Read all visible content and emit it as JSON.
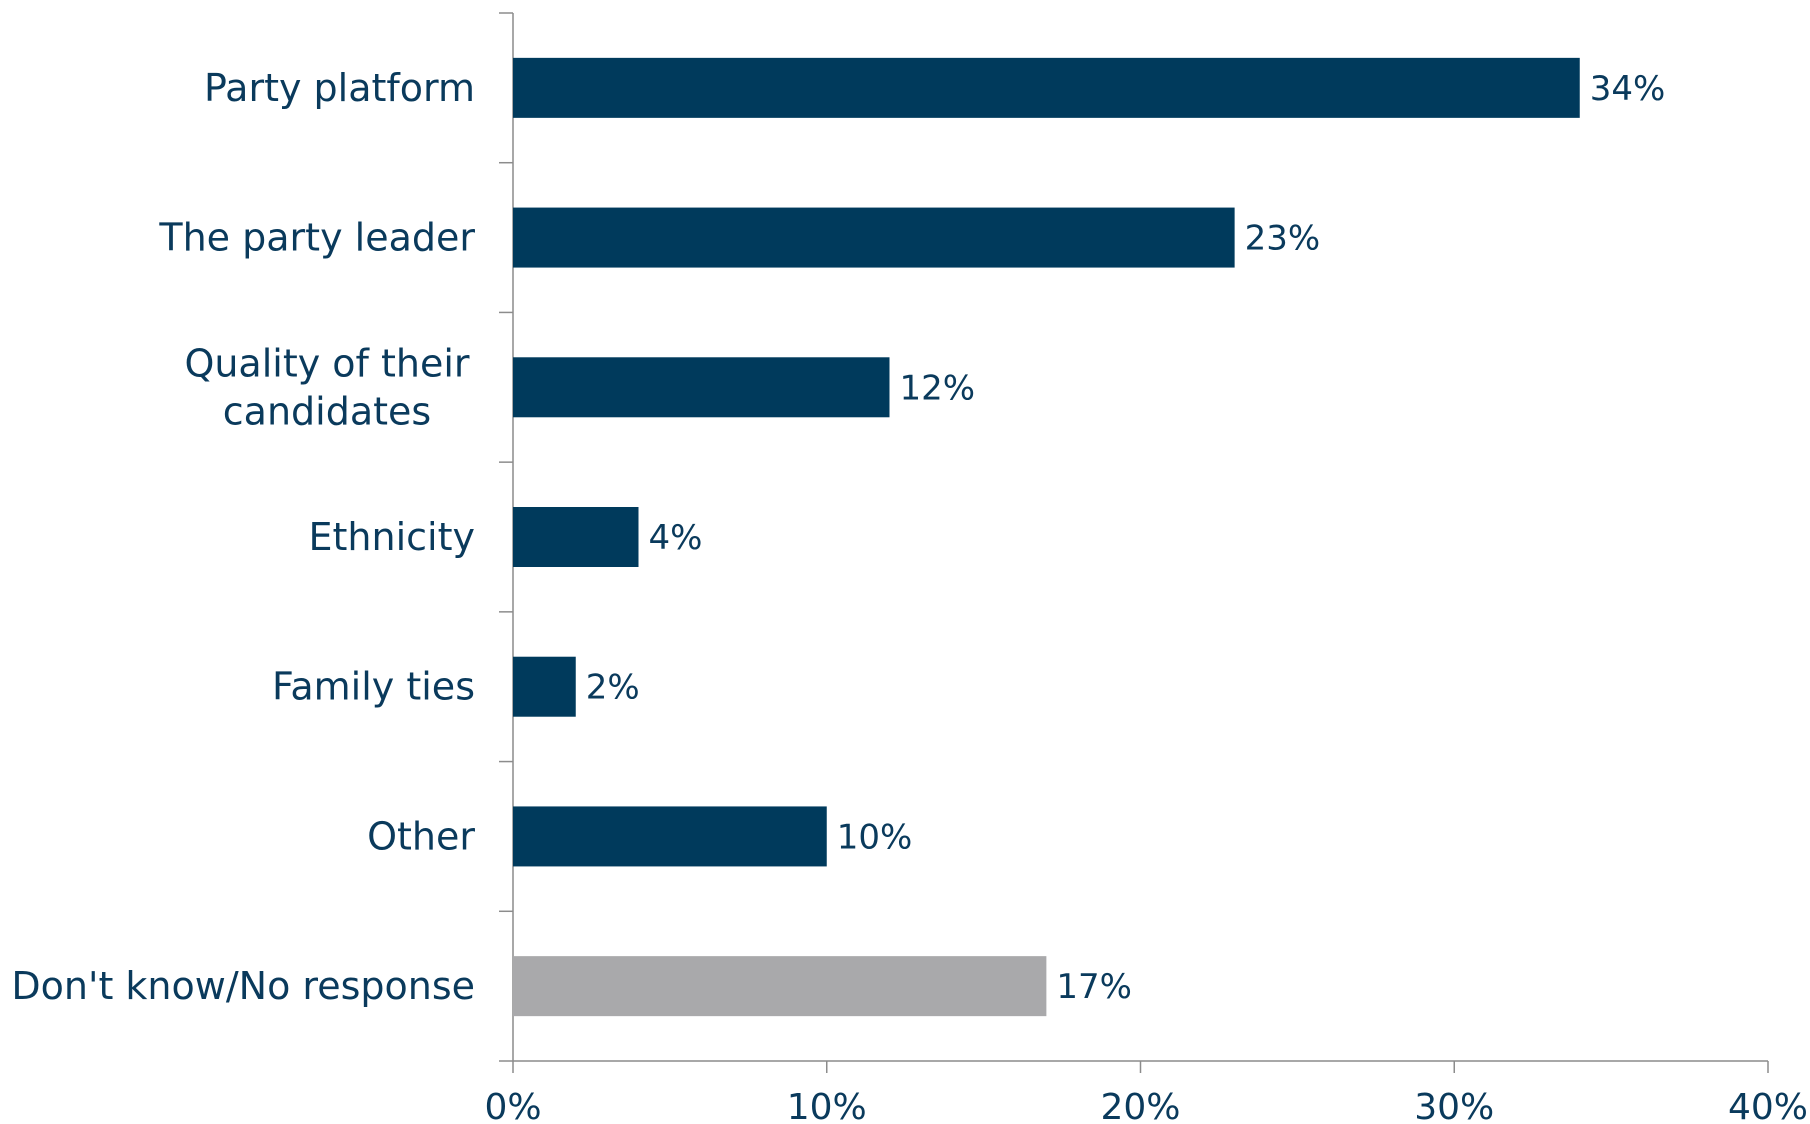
{
  "chart_data": {
    "type": "bar",
    "orientation": "horizontal",
    "categories": [
      [
        "Party platform"
      ],
      [
        "The party leader"
      ],
      [
        "Quality of their",
        "candidates"
      ],
      [
        "Ethnicity"
      ],
      [
        "Family ties"
      ],
      [
        "Other"
      ],
      [
        "Don't know/No response"
      ]
    ],
    "values": [
      34,
      23,
      12,
      4,
      2,
      10,
      17
    ],
    "value_labels": [
      "34%",
      "23%",
      "12%",
      "4%",
      "2%",
      "10%",
      "17%"
    ],
    "bar_colors": [
      "#003a5c",
      "#003a5c",
      "#003a5c",
      "#003a5c",
      "#003a5c",
      "#003a5c",
      "#a9a9ab"
    ],
    "xlim": [
      0,
      40
    ],
    "xticks": [
      0,
      10,
      20,
      30,
      40
    ],
    "xtick_labels": [
      "0%",
      "10%",
      "20%",
      "30%",
      "40%"
    ],
    "title": "",
    "xlabel": "",
    "ylabel": "",
    "grid": false,
    "legend": "none",
    "text_color": "#0a3a5c",
    "axis_color": "#8c8c8c"
  }
}
